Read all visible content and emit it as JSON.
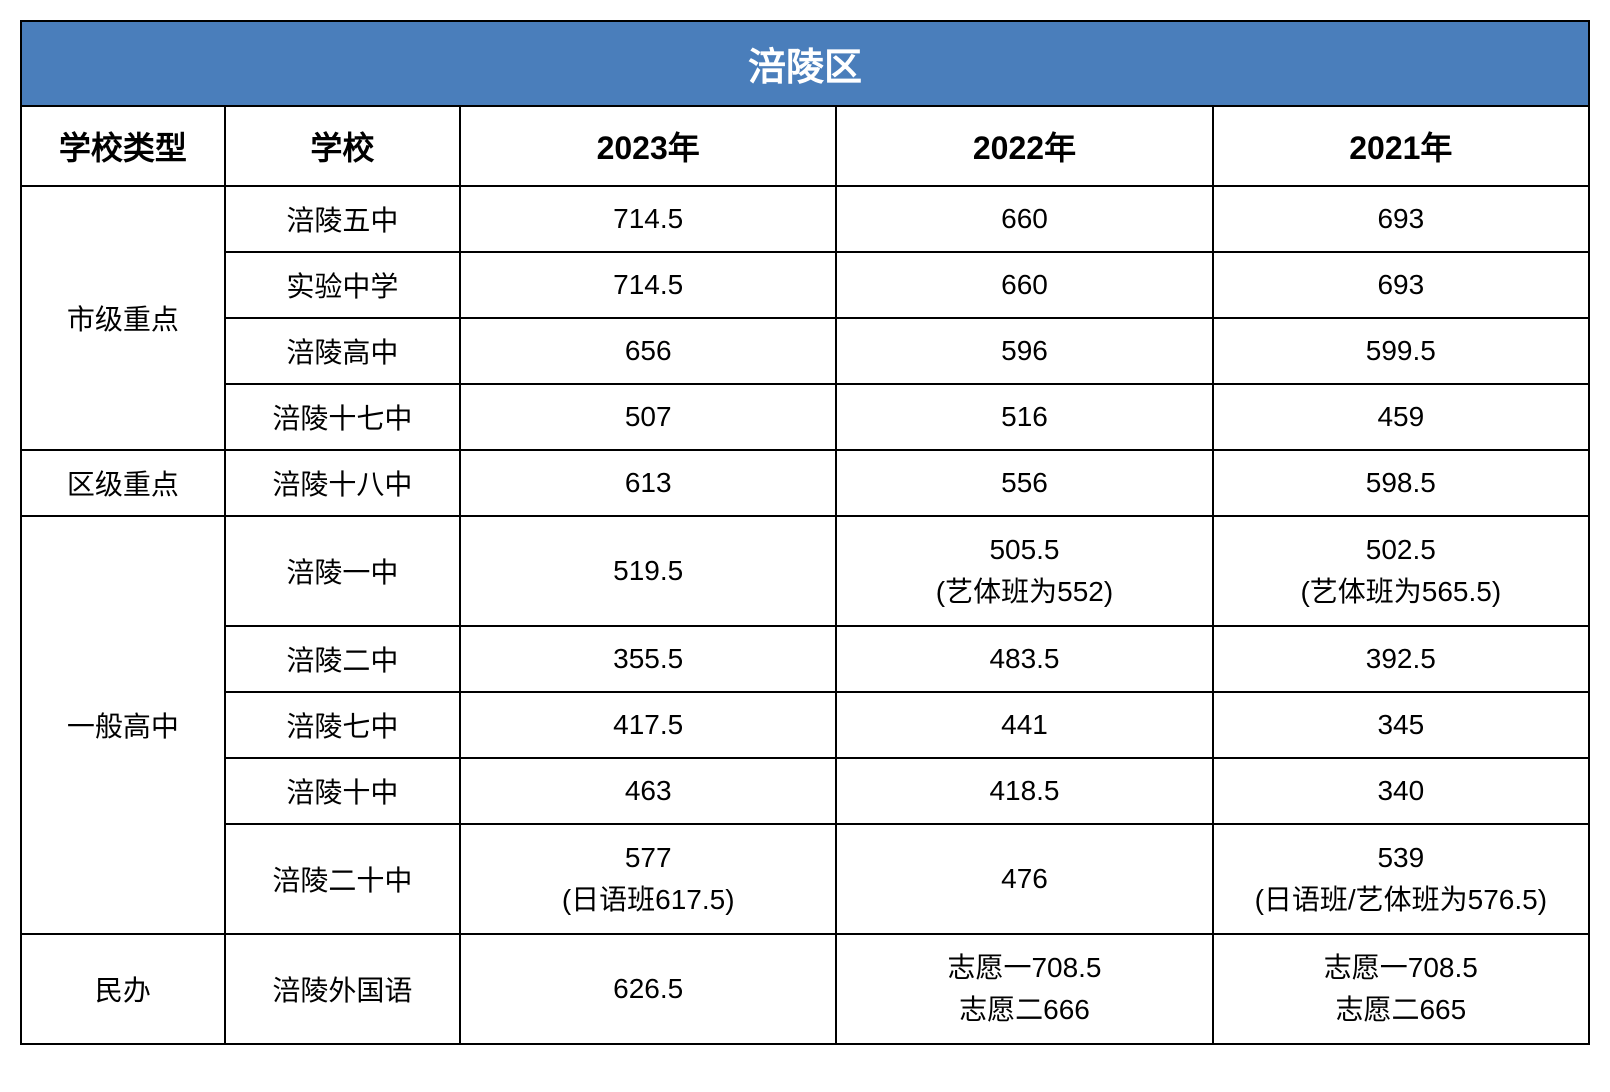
{
  "title": "涪陵区",
  "headers": {
    "type": "学校类型",
    "school": "学校",
    "year2023": "2023年",
    "year2022": "2022年",
    "year2021": "2021年"
  },
  "categories": {
    "city_key": "市级重点",
    "district_key": "区级重点",
    "general": "一般高中",
    "private": "民办"
  },
  "rows": {
    "r1": {
      "school": "涪陵五中",
      "y2023": "714.5",
      "y2022": "660",
      "y2021": "693"
    },
    "r2": {
      "school": "实验中学",
      "y2023": "714.5",
      "y2022": "660",
      "y2021": "693"
    },
    "r3": {
      "school": "涪陵高中",
      "y2023": "656",
      "y2022": "596",
      "y2021": "599.5"
    },
    "r4": {
      "school": "涪陵十七中",
      "y2023": "507",
      "y2022": "516",
      "y2021": "459"
    },
    "r5": {
      "school": "涪陵十八中",
      "y2023": "613",
      "y2022": "556",
      "y2021": "598.5"
    },
    "r6": {
      "school": "涪陵一中",
      "y2023": "519.5",
      "y2022_main": "505.5",
      "y2022_sub": "(艺体班为552)",
      "y2021_main": "502.5",
      "y2021_sub": "(艺体班为565.5)"
    },
    "r7": {
      "school": "涪陵二中",
      "y2023": "355.5",
      "y2022": "483.5",
      "y2021": "392.5"
    },
    "r8": {
      "school": "涪陵七中",
      "y2023": "417.5",
      "y2022": "441",
      "y2021": "345"
    },
    "r9": {
      "school": "涪陵十中",
      "y2023": "463",
      "y2022": "418.5",
      "y2021": "340"
    },
    "r10": {
      "school": "涪陵二十中",
      "y2023_main": "577",
      "y2023_sub": "(日语班617.5)",
      "y2022": "476",
      "y2021_main": "539",
      "y2021_sub": "(日语班/艺体班为576.5)"
    },
    "r11": {
      "school": "涪陵外国语",
      "y2023": "626.5",
      "y2022_main": "志愿一708.5",
      "y2022_sub": "志愿二666",
      "y2021_main": "志愿一708.5",
      "y2021_sub": "志愿二665"
    }
  },
  "styling": {
    "title_bg": "#4a7ebb",
    "title_color": "#ffffff",
    "border_color": "#000000",
    "cell_bg": "#ffffff",
    "title_fontsize": 38,
    "header_fontsize": 32,
    "cell_fontsize": 28
  }
}
